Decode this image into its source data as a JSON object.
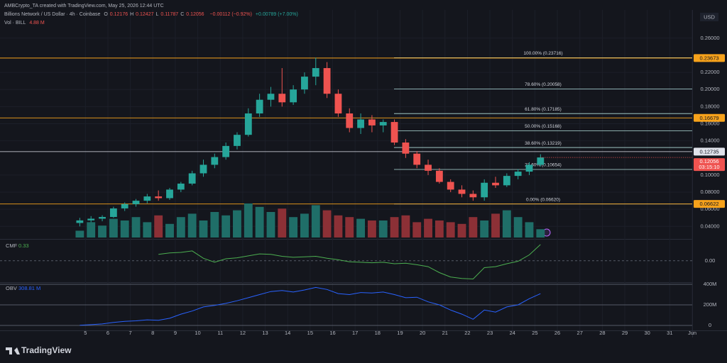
{
  "header": {
    "attribution": "AMBCrypto_TA created with TradingView.com, May 25, 2026 12:44 UTC",
    "symbol": "Billions Network / US Dollar · 4h · Coinbase",
    "ohlc": [
      {
        "label": "O",
        "value": 0.12176
      },
      {
        "label": "H",
        "value": 0.12427
      },
      {
        "label": "L",
        "value": 0.11787
      },
      {
        "label": "C",
        "value": 0.12056
      }
    ],
    "change": "−0.00112 (−0.92%)",
    "change_day": "+0.00789 (+7.00%)",
    "currency": "USD",
    "logo": "TradingView"
  },
  "chart_data": [
    {
      "type": "candlestick",
      "x": [
        4.75,
        5.25,
        5.75,
        6.25,
        6.75,
        7.25,
        7.75,
        8.25,
        8.75,
        9.25,
        9.75,
        10.25,
        10.75,
        11.25,
        11.75,
        12.25,
        12.75,
        13.25,
        13.75,
        14.25,
        14.75,
        15.25,
        15.75,
        16.25,
        16.75,
        17.25,
        17.75,
        18.25,
        18.75,
        19.25,
        19.75,
        20.25,
        20.75,
        21.25,
        21.75,
        22.25,
        22.75,
        23.25,
        23.75,
        24.25,
        24.75,
        25.25
      ],
      "open": [
        0.044,
        0.047,
        0.049,
        0.051,
        0.061,
        0.066,
        0.07,
        0.075,
        0.073,
        0.083,
        0.09,
        0.102,
        0.112,
        0.121,
        0.134,
        0.147,
        0.172,
        0.188,
        0.195,
        0.185,
        0.2,
        0.215,
        0.225,
        0.195,
        0.172,
        0.155,
        0.165,
        0.158,
        0.162,
        0.138,
        0.125,
        0.112,
        0.105,
        0.092,
        0.083,
        0.078,
        0.074,
        0.091,
        0.088,
        0.099,
        0.104,
        0.112
      ],
      "high": [
        0.05,
        0.052,
        0.053,
        0.063,
        0.068,
        0.072,
        0.078,
        0.082,
        0.085,
        0.092,
        0.105,
        0.118,
        0.125,
        0.138,
        0.15,
        0.178,
        0.195,
        0.203,
        0.225,
        0.205,
        0.22,
        0.2372,
        0.232,
        0.2,
        0.178,
        0.172,
        0.17,
        0.165,
        0.165,
        0.142,
        0.128,
        0.118,
        0.108,
        0.095,
        0.088,
        0.082,
        0.095,
        0.098,
        0.102,
        0.107,
        0.115,
        0.1243
      ],
      "low": [
        0.04,
        0.044,
        0.046,
        0.05,
        0.058,
        0.063,
        0.067,
        0.07,
        0.071,
        0.08,
        0.088,
        0.098,
        0.108,
        0.118,
        0.13,
        0.145,
        0.168,
        0.18,
        0.18,
        0.182,
        0.195,
        0.205,
        0.19,
        0.168,
        0.15,
        0.148,
        0.15,
        0.15,
        0.135,
        0.12,
        0.108,
        0.1,
        0.09,
        0.08,
        0.074,
        0.07,
        0.07,
        0.085,
        0.086,
        0.095,
        0.1,
        0.11
      ],
      "close": [
        0.047,
        0.049,
        0.051,
        0.061,
        0.066,
        0.07,
        0.075,
        0.073,
        0.083,
        0.09,
        0.102,
        0.112,
        0.121,
        0.134,
        0.147,
        0.172,
        0.188,
        0.195,
        0.185,
        0.2,
        0.215,
        0.225,
        0.195,
        0.172,
        0.155,
        0.165,
        0.158,
        0.162,
        0.138,
        0.125,
        0.112,
        0.105,
        0.092,
        0.083,
        0.078,
        0.074,
        0.091,
        0.088,
        0.099,
        0.104,
        0.112,
        0.12056
      ],
      "up_color": "#26a69a",
      "down_color": "#ef5350",
      "xlim": [
        1.2,
        32
      ],
      "xticks": [
        5,
        6,
        7,
        8,
        9,
        10,
        11,
        12,
        13,
        14,
        15,
        16,
        17,
        18,
        19,
        20,
        21,
        22,
        23,
        24,
        25,
        26,
        27,
        28,
        29,
        30,
        31,
        {
          "value": 32,
          "label": "Jun"
        }
      ],
      "ylim": [
        0.027,
        0.288
      ],
      "yticks": [
        {
          "value": 0.26,
          "label": "0.26000"
        },
        {
          "value": 0.22,
          "label": "0.22000"
        },
        {
          "value": 0.2,
          "label": "0.20000"
        },
        {
          "value": 0.18,
          "label": "0.18000"
        },
        {
          "value": 0.16,
          "label": "0.16000"
        },
        {
          "value": 0.14,
          "label": "0.14000"
        },
        {
          "value": 0.1,
          "label": "0.10000"
        },
        {
          "value": 0.08,
          "label": "0.08000"
        },
        {
          "value": 0.06,
          "label": "0.06000"
        },
        {
          "value": 0.04,
          "label": "0.04000"
        }
      ],
      "grid": true,
      "fib_levels": [
        {
          "value": 0.23716,
          "label": "100.00% (0.23716)"
        },
        {
          "value": 0.20058,
          "label": "78.60% (0.20058)"
        },
        {
          "value": 0.17185,
          "label": "61.80% (0.17185)"
        },
        {
          "value": 0.15168,
          "label": "50.00% (0.15168)"
        },
        {
          "value": 0.13219,
          "label": "38.60% (0.13219)"
        },
        {
          "value": 0.10654,
          "label": "23.60% (0.10654)"
        },
        {
          "value": 0.0662,
          "label": "0.00% (0.06620)"
        }
      ],
      "fib_color": "#b2dfdb",
      "levels": [
        0.23673,
        0.16679,
        0.06622
      ],
      "level_color": "#f7a21b",
      "marker_level": 0.12735,
      "marker_color": "#e0e3eb",
      "countdown": "03:15:10"
    },
    {
      "type": "bar",
      "name": "Vol · BILL",
      "legend_value": "4.88 M",
      "values": [
        4,
        9,
        7,
        11,
        10,
        12,
        9,
        13,
        8,
        12,
        14,
        10,
        15,
        13,
        16,
        20,
        18,
        15,
        17,
        12,
        14,
        19,
        16,
        13,
        12,
        11,
        10,
        10,
        12,
        13,
        9,
        11,
        10,
        9,
        8,
        12,
        10,
        14,
        16,
        12,
        9,
        4.88
      ],
      "ylim": [
        0,
        25
      ],
      "up_color": "#1f6e68",
      "down_color": "#8c3036"
    },
    {
      "type": "line",
      "name": "CMF",
      "color": "#4caf50",
      "values": [
        null,
        null,
        null,
        null,
        null,
        null,
        null,
        0.13,
        0.16,
        0.17,
        0.2,
        0.05,
        -0.03,
        0.04,
        0.06,
        0.1,
        0.14,
        0.13,
        0.09,
        0.07,
        0.08,
        0.09,
        0.05,
        0.02,
        -0.02,
        -0.03,
        -0.04,
        -0.03,
        -0.06,
        -0.05,
        -0.08,
        -0.12,
        -0.24,
        -0.33,
        -0.36,
        -0.37,
        -0.14,
        -0.12,
        -0.06,
        -0.01,
        0.12,
        0.33
      ],
      "ylim": [
        -0.42,
        0.4
      ],
      "yticks": [
        {
          "value": 0,
          "label": "0.00"
        }
      ]
    },
    {
      "type": "line",
      "name": "OBV",
      "color": "#2962ff",
      "legend_value": "308.81 M",
      "values": [
        2000000,
        8000000,
        15000000,
        30000000,
        40000000,
        45000000,
        55000000,
        50000000,
        70000000,
        110000000,
        140000000,
        180000000,
        195000000,
        215000000,
        240000000,
        270000000,
        300000000,
        330000000,
        340000000,
        325000000,
        345000000,
        370000000,
        350000000,
        310000000,
        300000000,
        320000000,
        315000000,
        325000000,
        300000000,
        270000000,
        275000000,
        230000000,
        200000000,
        150000000,
        110000000,
        60000000,
        150000000,
        130000000,
        180000000,
        200000000,
        260000000,
        308810000
      ],
      "ylim": [
        -41000000,
        407000000
      ],
      "yticks": [
        {
          "value": 400000000,
          "label": "400M"
        },
        {
          "value": 200000000,
          "label": "200M"
        },
        0
      ]
    }
  ]
}
